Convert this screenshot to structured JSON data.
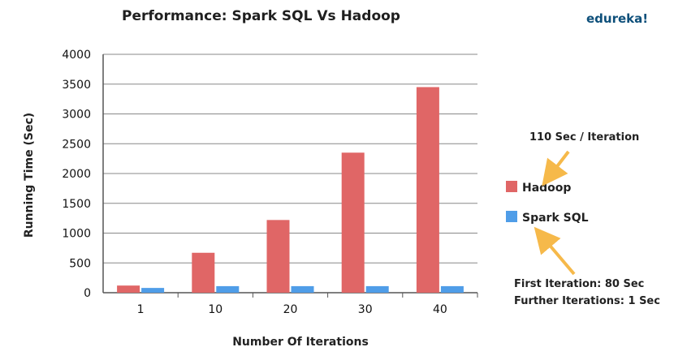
{
  "brand": "edureka!",
  "colors": {
    "hadoop": "#e06666",
    "spark": "#4f9de8",
    "arrow": "#f6b94a",
    "grid": "#888888"
  },
  "chart_data": {
    "type": "bar",
    "title": "Performance: Spark SQL Vs Hadoop",
    "xlabel": "Number Of Iterations",
    "ylabel": "Running Time (Sec)",
    "categories": [
      "1",
      "10",
      "20",
      "30",
      "40"
    ],
    "ylim": [
      0,
      4000
    ],
    "yticks": [
      "0",
      "500",
      "1000",
      "1500",
      "2000",
      "2500",
      "3000",
      "3500",
      "4000"
    ],
    "grid": true,
    "legend_position": "right",
    "series": [
      {
        "name": "Hadoop",
        "values": [
          120,
          670,
          1220,
          2350,
          3450
        ]
      },
      {
        "name": "Spark SQL",
        "values": [
          80,
          110,
          110,
          110,
          110
        ]
      }
    ],
    "annotations": {
      "hadoop_note": "110 Sec / Iteration",
      "spark_note_line1": "First Iteration: 80 Sec",
      "spark_note_line2": "Further Iterations: 1 Sec"
    }
  }
}
